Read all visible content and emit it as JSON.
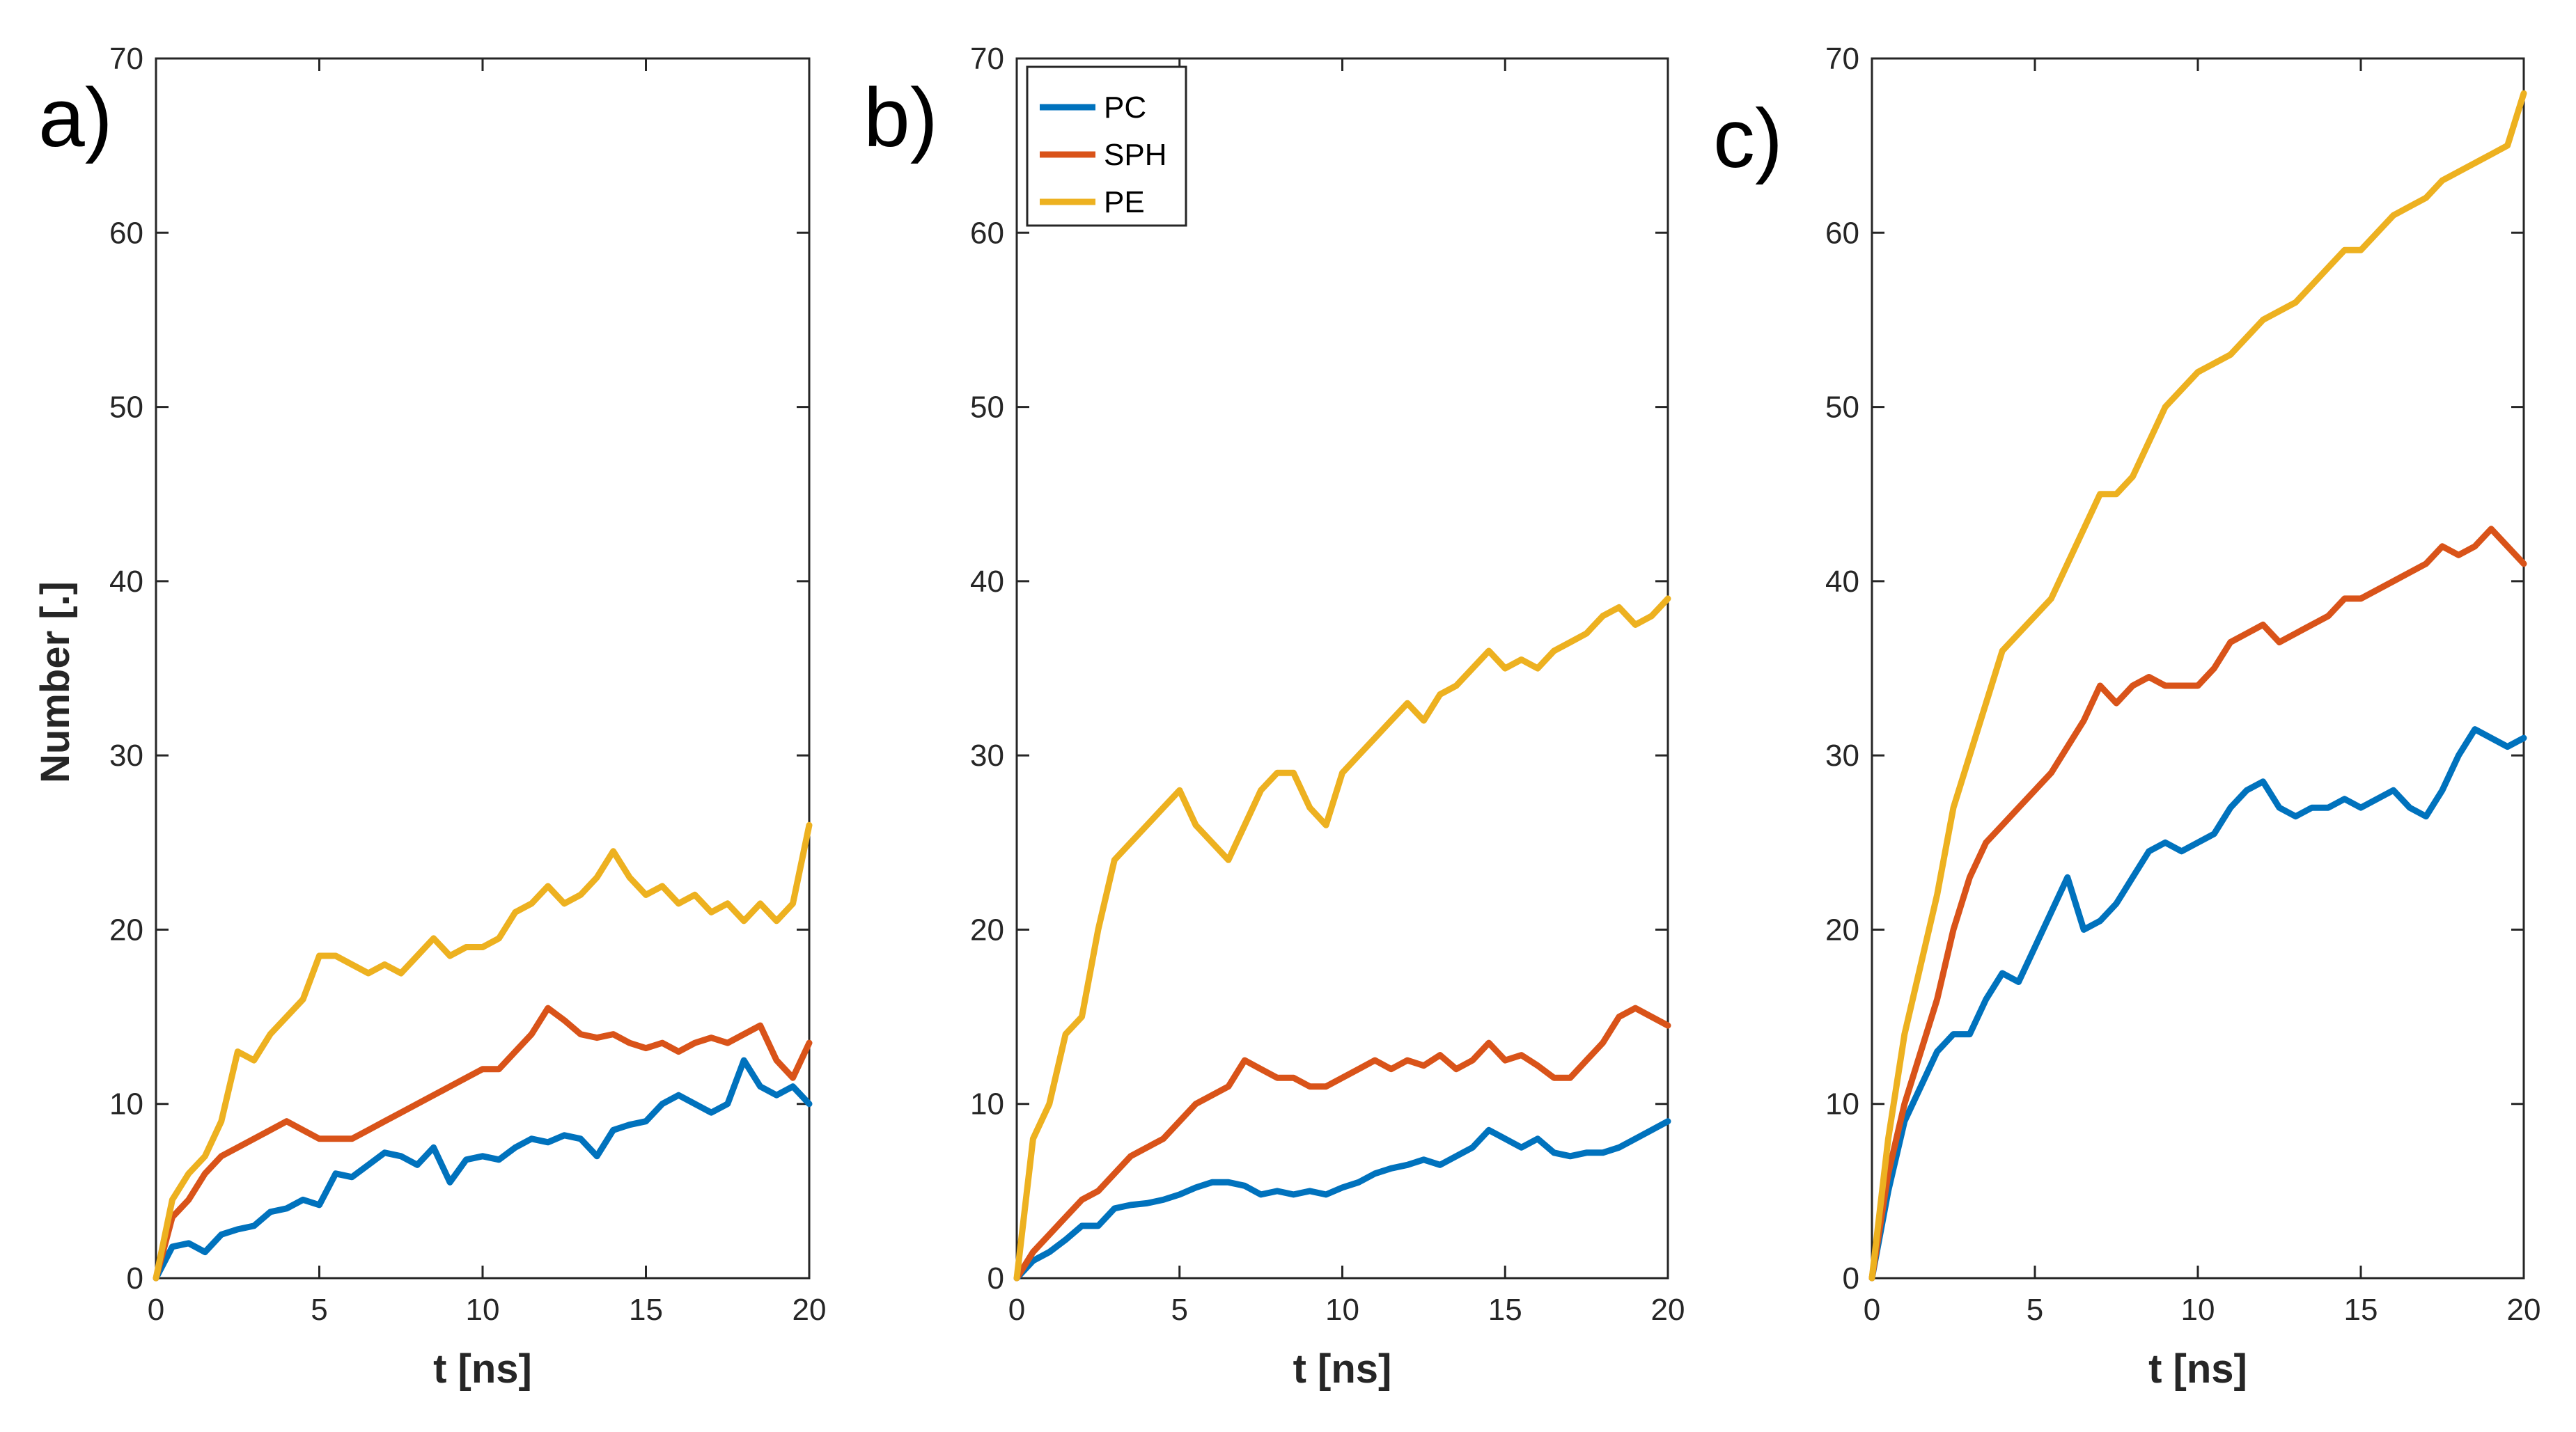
{
  "chart_data": [
    {
      "type": "line",
      "panel_label": "a)",
      "xlabel": "t [ns]",
      "ylabel": "Number [.]",
      "xlim": [
        0,
        20
      ],
      "ylim": [
        0,
        70
      ],
      "xticks": [
        "0",
        "5",
        "10",
        "15",
        "20"
      ],
      "yticks": [
        "0",
        "10",
        "20",
        "30",
        "40",
        "50",
        "60",
        "70"
      ],
      "x": [
        0,
        0.5,
        1,
        1.5,
        2,
        2.5,
        3,
        3.5,
        4,
        4.5,
        5,
        5.5,
        6,
        6.5,
        7,
        7.5,
        8,
        8.5,
        9,
        9.5,
        10,
        10.5,
        11,
        11.5,
        12,
        12.5,
        13,
        13.5,
        14,
        14.5,
        15,
        15.5,
        16,
        16.5,
        17,
        17.5,
        18,
        18.5,
        19,
        19.5,
        20
      ],
      "series": [
        {
          "name": "PC",
          "color": "#0072BD",
          "values": [
            0,
            1.8,
            2,
            1.5,
            2.5,
            2.8,
            3,
            3.8,
            4,
            4.5,
            4.2,
            6,
            5.8,
            6.5,
            7.2,
            7,
            6.5,
            7.5,
            5.5,
            6.8,
            7,
            6.8,
            7.5,
            8,
            7.8,
            8.2,
            8,
            7,
            8.5,
            8.8,
            9,
            10,
            10.5,
            10,
            9.5,
            10,
            12.5,
            11,
            10.5,
            11,
            10
          ]
        },
        {
          "name": "SPH",
          "color": "#D95319",
          "values": [
            0,
            3.5,
            4.5,
            6,
            7,
            7.5,
            8,
            8.5,
            9,
            8.5,
            8,
            8,
            8,
            8.5,
            9,
            9.5,
            10,
            10.5,
            11,
            11.5,
            12,
            12,
            13,
            14,
            15.5,
            14.8,
            14,
            13.8,
            14,
            13.5,
            13.2,
            13.5,
            13,
            13.5,
            13.8,
            13.5,
            14,
            14.5,
            12.5,
            11.5,
            13.5
          ]
        },
        {
          "name": "PE",
          "color": "#EDB120",
          "values": [
            0,
            4.5,
            6,
            7,
            9,
            13,
            12.5,
            14,
            15,
            16,
            18.5,
            18.5,
            18,
            17.5,
            18,
            17.5,
            18.5,
            19.5,
            18.5,
            19,
            19,
            19.5,
            21,
            21.5,
            22.5,
            21.5,
            22,
            23,
            24.5,
            23,
            22,
            22.5,
            21.5,
            22,
            21,
            21.5,
            20.5,
            21.5,
            20.5,
            21.5,
            26
          ]
        }
      ]
    },
    {
      "type": "line",
      "panel_label": "b)",
      "xlabel": "t [ns]",
      "ylabel": "",
      "xlim": [
        0,
        20
      ],
      "ylim": [
        0,
        70
      ],
      "xticks": [
        "0",
        "5",
        "10",
        "15",
        "20"
      ],
      "yticks": [
        "0",
        "10",
        "20",
        "30",
        "40",
        "50",
        "60",
        "70"
      ],
      "legend": [
        "PC",
        "SPH",
        "PE"
      ],
      "legend_position": "top-left",
      "x": [
        0,
        0.5,
        1,
        1.5,
        2,
        2.5,
        3,
        3.5,
        4,
        4.5,
        5,
        5.5,
        6,
        6.5,
        7,
        7.5,
        8,
        8.5,
        9,
        9.5,
        10,
        10.5,
        11,
        11.5,
        12,
        12.5,
        13,
        13.5,
        14,
        14.5,
        15,
        15.5,
        16,
        16.5,
        17,
        17.5,
        18,
        18.5,
        19,
        19.5,
        20
      ],
      "series": [
        {
          "name": "PC",
          "color": "#0072BD",
          "values": [
            0,
            1,
            1.5,
            2.2,
            3,
            3,
            4,
            4.2,
            4.3,
            4.5,
            4.8,
            5.2,
            5.5,
            5.5,
            5.3,
            4.8,
            5,
            4.8,
            5,
            4.8,
            5.2,
            5.5,
            6,
            6.3,
            6.5,
            6.8,
            6.5,
            7,
            7.5,
            8.5,
            8,
            7.5,
            8,
            7.2,
            7,
            7.2,
            7.2,
            7.5,
            8,
            8.5,
            9
          ]
        },
        {
          "name": "SPH",
          "color": "#D95319",
          "values": [
            0,
            1.5,
            2.5,
            3.5,
            4.5,
            5,
            6,
            7,
            7.5,
            8,
            9,
            10,
            10.5,
            11,
            12.5,
            12,
            11.5,
            11.5,
            11,
            11,
            11.5,
            12,
            12.5,
            12,
            12.5,
            12.2,
            12.8,
            12,
            12.5,
            13.5,
            12.5,
            12.8,
            12.2,
            11.5,
            11.5,
            12.5,
            13.5,
            15,
            15.5,
            15,
            14.5
          ]
        },
        {
          "name": "PE",
          "color": "#EDB120",
          "values": [
            0,
            8,
            10,
            14,
            15,
            20,
            24,
            25,
            26,
            27,
            28,
            26,
            25,
            24,
            26,
            28,
            29,
            29,
            27,
            26,
            29,
            30,
            31,
            32,
            33,
            32,
            33.5,
            34,
            35,
            36,
            35,
            35.5,
            35,
            36,
            36.5,
            37,
            38,
            38.5,
            37.5,
            38,
            39
          ]
        }
      ]
    },
    {
      "type": "line",
      "panel_label": "c)",
      "xlabel": "t [ns]",
      "ylabel": "",
      "xlim": [
        0,
        20
      ],
      "ylim": [
        0,
        70
      ],
      "xticks": [
        "0",
        "5",
        "10",
        "15",
        "20"
      ],
      "yticks": [
        "0",
        "10",
        "20",
        "30",
        "40",
        "50",
        "60",
        "70"
      ],
      "x": [
        0,
        0.5,
        1,
        1.5,
        2,
        2.5,
        3,
        3.5,
        4,
        4.5,
        5,
        5.5,
        6,
        6.5,
        7,
        7.5,
        8,
        8.5,
        9,
        9.5,
        10,
        10.5,
        11,
        11.5,
        12,
        12.5,
        13,
        13.5,
        14,
        14.5,
        15,
        15.5,
        16,
        16.5,
        17,
        17.5,
        18,
        18.5,
        19,
        19.5,
        20
      ],
      "series": [
        {
          "name": "PC",
          "color": "#0072BD",
          "values": [
            0,
            5,
            9,
            11,
            13,
            14,
            14,
            16,
            17.5,
            17,
            19,
            21,
            23,
            20,
            20.5,
            21.5,
            23,
            24.5,
            25,
            24.5,
            25,
            25.5,
            27,
            28,
            28.5,
            27,
            26.5,
            27,
            27,
            27.5,
            27,
            27.5,
            28,
            27,
            26.5,
            28,
            30,
            31.5,
            31,
            30.5,
            31
          ]
        },
        {
          "name": "SPH",
          "color": "#D95319",
          "values": [
            0,
            6,
            10,
            13,
            16,
            20,
            23,
            25,
            26,
            27,
            28,
            29,
            30.5,
            32,
            34,
            33,
            34,
            34.5,
            34,
            34,
            34,
            35,
            36.5,
            37,
            37.5,
            36.5,
            37,
            37.5,
            38,
            39,
            39,
            39.5,
            40,
            40.5,
            41,
            42,
            41.5,
            42,
            43,
            42,
            41
          ]
        },
        {
          "name": "PE",
          "color": "#EDB120",
          "values": [
            0,
            8,
            14,
            18,
            22,
            27,
            30,
            33,
            36,
            37,
            38,
            39,
            41,
            43,
            45,
            45,
            46,
            48,
            50,
            51,
            52,
            52.5,
            53,
            54,
            55,
            55.5,
            56,
            57,
            58,
            59,
            59,
            60,
            61,
            61.5,
            62,
            63,
            63.5,
            64,
            64.5,
            65,
            68
          ]
        }
      ]
    }
  ]
}
